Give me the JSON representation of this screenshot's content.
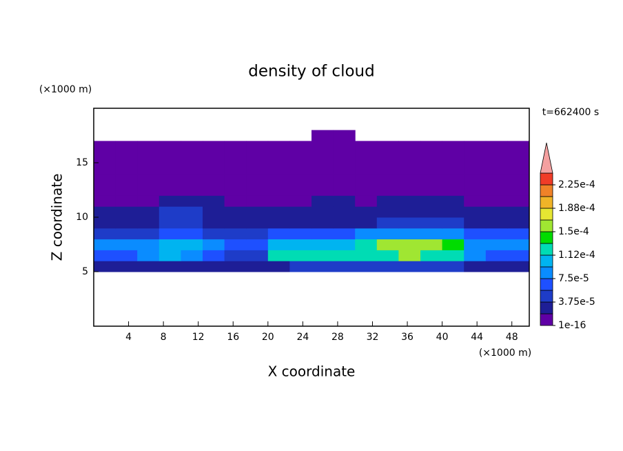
{
  "chart_data": {
    "type": "contour",
    "title": "density of cloud",
    "x_label": "X coordinate",
    "y_label": "Z coordinate",
    "x_unit": "(×1000 m)",
    "y_unit": "(×1000 m)",
    "annotation": "t=662400 s",
    "xlim": [
      0,
      50
    ],
    "ylim": [
      0,
      20
    ],
    "xticks": [
      4,
      8,
      12,
      16,
      20,
      24,
      28,
      32,
      36,
      40,
      44,
      48
    ],
    "yticks": [
      5,
      10,
      15
    ],
    "x": [
      1.25,
      3.75,
      6.25,
      8.75,
      11.25,
      13.75,
      16.25,
      18.75,
      21.25,
      23.75,
      26.25,
      28.75,
      31.25,
      33.75,
      36.25,
      38.75,
      41.25,
      43.75,
      46.25,
      48.75
    ],
    "z": [
      5.5,
      6.5,
      7.5,
      8.5,
      9.5,
      10.5,
      11.5,
      12.5,
      13.5,
      14.5,
      15.5,
      16.5,
      17.5
    ],
    "values": [
      [
        3e-05,
        3e-05,
        3e-05,
        3e-05,
        3e-05,
        3e-05,
        2e-05,
        2e-05,
        3e-05,
        4e-05,
        4e-05,
        4e-05,
        4e-05,
        4e-05,
        4e-05,
        4e-05,
        4e-05,
        3e-05,
        3e-05,
        3e-05
      ],
      [
        7e-05,
        7e-05,
        8e-05,
        0.00011,
        9e-05,
        7e-05,
        5e-05,
        5e-05,
        0.00012,
        0.00012,
        0.00012,
        0.00013,
        0.00013,
        0.00013,
        0.00016,
        0.00012,
        0.00012,
        8e-05,
        7e-05,
        7e-05
      ],
      [
        8e-05,
        8e-05,
        9e-05,
        0.0001,
        0.0001,
        8e-05,
        6e-05,
        6e-05,
        0.00011,
        0.00011,
        0.00011,
        0.00011,
        0.00013,
        0.00015,
        0.00015,
        0.00015,
        0.00014,
        9e-05,
        9e-05,
        9e-05
      ],
      [
        5e-05,
        5e-05,
        5e-05,
        6e-05,
        6e-05,
        5e-05,
        4e-05,
        4e-05,
        6e-05,
        6e-05,
        6e-05,
        6e-05,
        8e-05,
        8e-05,
        8e-05,
        8e-05,
        8e-05,
        6e-05,
        6e-05,
        6e-05
      ],
      [
        3e-05,
        3e-05,
        3e-05,
        4.5e-05,
        4.5e-05,
        3e-05,
        3e-05,
        3e-05,
        3e-05,
        3e-05,
        3e-05,
        3e-05,
        3e-05,
        4.5e-05,
        4.5e-05,
        4.5e-05,
        4.5e-05,
        3e-05,
        3e-05,
        3e-05
      ],
      [
        2.5e-05,
        2.5e-05,
        2.5e-05,
        4e-05,
        4e-05,
        2.5e-05,
        2.5e-05,
        2.5e-05,
        2.5e-05,
        2.5e-05,
        2.5e-05,
        2.5e-05,
        2.5e-05,
        2.5e-05,
        2.5e-05,
        2.5e-05,
        2.5e-05,
        2.5e-05,
        2.5e-05,
        2.5e-05
      ],
      [
        8e-06,
        8e-06,
        8e-06,
        2e-05,
        2e-05,
        2e-05,
        8e-06,
        8e-06,
        8e-06,
        8e-06,
        2e-05,
        2e-05,
        8e-06,
        2e-05,
        2e-05,
        2e-05,
        2e-05,
        8e-06,
        8e-06,
        8e-06
      ],
      [
        5e-06,
        5e-06,
        5e-06,
        5e-06,
        5e-06,
        5e-06,
        5e-06,
        5e-06,
        5e-06,
        5e-06,
        5e-06,
        5e-06,
        5e-06,
        5e-06,
        5e-06,
        5e-06,
        5e-06,
        5e-06,
        5e-06,
        5e-06
      ],
      [
        5e-06,
        5e-06,
        5e-06,
        5e-06,
        5e-06,
        5e-06,
        5e-06,
        5e-06,
        5e-06,
        5e-06,
        5e-06,
        5e-06,
        5e-06,
        5e-06,
        5e-06,
        5e-06,
        5e-06,
        5e-06,
        5e-06,
        5e-06
      ],
      [
        5e-06,
        5e-06,
        5e-06,
        5e-06,
        5e-06,
        5e-06,
        5e-06,
        5e-06,
        5e-06,
        5e-06,
        5e-06,
        5e-06,
        5e-06,
        5e-06,
        5e-06,
        5e-06,
        5e-06,
        5e-06,
        5e-06,
        5e-06
      ],
      [
        5e-06,
        5e-06,
        5e-06,
        5e-06,
        5e-06,
        5e-06,
        5e-06,
        5e-06,
        5e-06,
        5e-06,
        5e-06,
        5e-06,
        5e-06,
        5e-06,
        5e-06,
        5e-06,
        5e-06,
        5e-06,
        5e-06,
        5e-06
      ],
      [
        1e-06,
        1e-06,
        1e-06,
        1e-06,
        1e-06,
        1e-06,
        1e-06,
        1e-06,
        1e-06,
        1e-06,
        1e-06,
        1e-06,
        1e-06,
        1e-06,
        1e-06,
        1e-06,
        1e-06,
        1e-06,
        1e-06,
        1e-06
      ],
      [
        null,
        null,
        null,
        null,
        null,
        null,
        null,
        null,
        null,
        null,
        1e-06,
        1e-06,
        null,
        null,
        null,
        null,
        null,
        null,
        null,
        null
      ]
    ],
    "levels": [
      1e-16,
      1.875e-05,
      3.75e-05,
      5.625e-05,
      7.5e-05,
      9.375e-05,
      0.000112,
      0.000131,
      0.00015,
      0.000169,
      0.000188,
      0.000206,
      0.000225
    ],
    "colors": [
      "#5f00a5",
      "#1e1e96",
      "#1e3cc8",
      "#1e50ff",
      "#0a8cff",
      "#00b4f0",
      "#00dcb4",
      "#00dc00",
      "#a0e632",
      "#e6e632",
      "#f0b428",
      "#f08228",
      "#f03c28"
    ],
    "extend_color": "#f4a0a0",
    "cticks": [
      1e-16,
      {
        "value": 3.75e-05,
        "label": "3.75e-5"
      },
      {
        "value": 7.5e-05,
        "label": "7.5e-5"
      },
      {
        "value": 0.000112,
        "label": "1.12e-4"
      },
      {
        "value": 0.00015,
        "label": "1.5e-4"
      },
      {
        "value": 0.000188,
        "label": "1.88e-4"
      },
      {
        "value": 0.000225,
        "label": "2.25e-4"
      }
    ]
  }
}
